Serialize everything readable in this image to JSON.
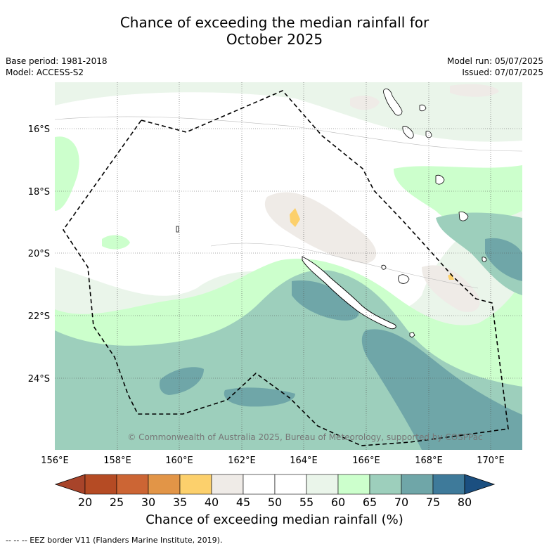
{
  "title_line1": "Chance of exceeding the median rainfall for",
  "title_line2": "October 2025",
  "base_period": "Base period: 1981-2018",
  "model": "Model: ACCESS-S2",
  "model_run": "Model run: 05/07/2025",
  "issued": "Issued: 07/07/2025",
  "copyright": "© Commonwealth of Australia 2025, Bureau of Meteorology, supported by COSPPac",
  "map": {
    "lon_labels": [
      "156°E",
      "158°E",
      "160°E",
      "162°E",
      "164°E",
      "166°E",
      "168°E",
      "170°E"
    ],
    "lat_labels": [
      "16°S",
      "18°S",
      "20°S",
      "22°S",
      "24°S"
    ]
  },
  "colorbar": {
    "title": "Chance of exceeding median rainfall (%)",
    "ticks": [
      "20",
      "25",
      "30",
      "35",
      "40",
      "45",
      "50",
      "55",
      "60",
      "65",
      "70",
      "75",
      "80"
    ],
    "colors": [
      "#a8442a",
      "#b54b24",
      "#cc6534",
      "#e29547",
      "#fcd06c",
      "#efebe7",
      "#ffffff",
      "#ffffff",
      "#eaf5ea",
      "#ccffcc",
      "#9dcfbc",
      "#6fa6a8",
      "#3e7a9a",
      "#1b4f80"
    ]
  },
  "footnote": "--  --  -- EEZ border V11 (Flanders Marine Institute, 2019)."
}
